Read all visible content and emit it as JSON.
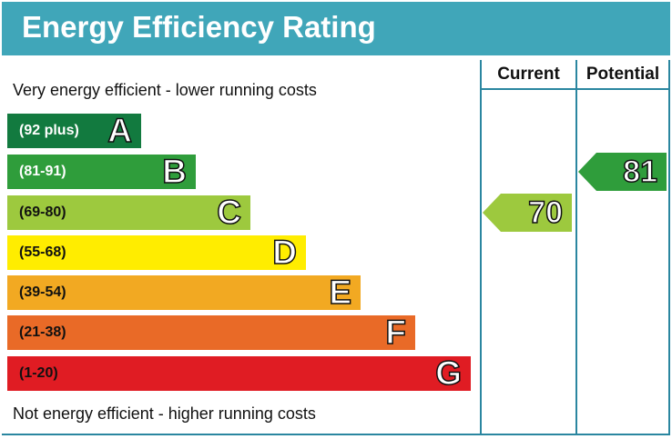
{
  "chart_data": {
    "type": "bar",
    "title": "Energy Efficiency Rating",
    "top_note": "Very energy efficient - lower running costs",
    "bottom_note": "Not energy efficient - higher running costs",
    "columns": [
      "Current",
      "Potential"
    ],
    "bands": [
      {
        "letter": "A",
        "range": "(92 plus)",
        "color": "#127a3f",
        "text_color": "#ffffff"
      },
      {
        "letter": "B",
        "range": "(81-91)",
        "color": "#2f9d3b",
        "text_color": "#ffffff"
      },
      {
        "letter": "C",
        "range": "(69-80)",
        "color": "#9dc93e",
        "text_color": "#111111"
      },
      {
        "letter": "D",
        "range": "(55-68)",
        "color": "#ffed00",
        "text_color": "#111111"
      },
      {
        "letter": "E",
        "range": "(39-54)",
        "color": "#f2a922",
        "text_color": "#111111"
      },
      {
        "letter": "F",
        "range": "(21-38)",
        "color": "#e96a27",
        "text_color": "#111111"
      },
      {
        "letter": "G",
        "range": "(1-20)",
        "color": "#e01c23",
        "text_color": "#111111"
      }
    ],
    "current": {
      "value": 70,
      "band": "C",
      "color": "#9dc93e"
    },
    "potential": {
      "value": 81,
      "band": "B",
      "color": "#2f9d3b"
    },
    "header_color": "#40a6b9"
  }
}
